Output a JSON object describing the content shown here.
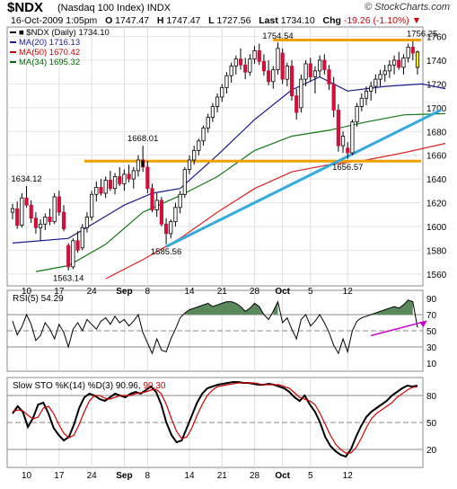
{
  "header": {
    "symbol": "$NDX",
    "index_name": "(Nasdaq 100 Index)",
    "exchange": "INDX",
    "brand": "© StockCharts.com",
    "date": "16-Oct-2009 1:05pm",
    "open_label": "O",
    "open": "1747.47",
    "high_label": "H",
    "high": "1747.47",
    "low_label": "L",
    "low": "1727.56",
    "last_label": "Last",
    "last": "1734.10",
    "chg_label": "Chg",
    "chg": "-19.26 (-1.10%)",
    "chg_arrow": "▼"
  },
  "legend": [
    {
      "label": "■ $NDX (Daily) 1734.10",
      "color": "#000000"
    },
    {
      "label": "MA(20) 1716.13",
      "color": "#1a1a8c"
    },
    {
      "label": "MA(50) 1670.42",
      "color": "#cc0000"
    },
    {
      "label": "MA(34) 1695.32",
      "color": "#006600"
    }
  ],
  "panels": {
    "rsi_label": "RSI(5) 54.29",
    "sto_label": "Slow STO %K(14) %D(3) 90.96,",
    "sto_d_value": "90.30"
  },
  "colors": {
    "up_candle": "#ffffff",
    "down_candle": "#d0103a",
    "black_candle": "#000000",
    "support_line": "#f0a000",
    "trend_line": "#33aadd",
    "arrow": "#cc00cc",
    "rsi_fill": "#5a8a5a"
  },
  "chart_data": [
    {
      "type": "candlestick",
      "title": "$NDX (Nasdaq 100 Index) Daily",
      "x_tick_labels": [
        "10",
        "17",
        "24",
        "Sep",
        "8",
        "14",
        "21",
        "28",
        "Oct",
        "5",
        "12"
      ],
      "y_tick_labels": [
        "1560",
        "1580",
        "1600",
        "1620",
        "1640",
        "1660",
        "1680",
        "1700",
        "1720",
        "1740",
        "1760"
      ],
      "ylim": [
        1550,
        1768
      ],
      "annotations": [
        {
          "text": "1634.12",
          "bar": 3,
          "value": 1634.12
        },
        {
          "text": "1563.14",
          "bar": 12,
          "value": 1563.14
        },
        {
          "text": "1668.01",
          "bar": 28,
          "value": 1668.01
        },
        {
          "text": "1585.56",
          "bar": 33,
          "value": 1585.56
        },
        {
          "text": "1754.54",
          "bar": 57,
          "value": 1754.54
        },
        {
          "text": "1656.57",
          "bar": 72,
          "value": 1656.57
        },
        {
          "text": "1756.25",
          "bar": 88,
          "value": 1756.25
        }
      ],
      "horizontal_lines": [
        1655,
        1757
      ],
      "trend_line": [
        [
          33,
          1583
        ],
        [
          92,
          1698
        ]
      ],
      "ohlc": [
        [
          1612,
          1619,
          1606,
          1615
        ],
        [
          1615,
          1621,
          1598,
          1601
        ],
        [
          1601,
          1628,
          1599,
          1624
        ],
        [
          1624,
          1634,
          1616,
          1618
        ],
        [
          1618,
          1622,
          1603,
          1607
        ],
        [
          1607,
          1612,
          1594,
          1599
        ],
        [
          1599,
          1606,
          1588,
          1602
        ],
        [
          1602,
          1611,
          1597,
          1608
        ],
        [
          1608,
          1615,
          1601,
          1604
        ],
        [
          1604,
          1628,
          1602,
          1625
        ],
        [
          1625,
          1630,
          1609,
          1612
        ],
        [
          1612,
          1618,
          1596,
          1598
        ],
        [
          1584,
          1586,
          1563,
          1566
        ],
        [
          1566,
          1590,
          1564,
          1588
        ],
        [
          1588,
          1596,
          1578,
          1580
        ],
        [
          1582,
          1602,
          1580,
          1599
        ],
        [
          1599,
          1612,
          1595,
          1608
        ],
        [
          1608,
          1630,
          1605,
          1627
        ],
        [
          1627,
          1638,
          1621,
          1633
        ],
        [
          1633,
          1640,
          1626,
          1628
        ],
        [
          1628,
          1642,
          1624,
          1639
        ],
        [
          1639,
          1647,
          1630,
          1632
        ],
        [
          1632,
          1645,
          1627,
          1642
        ],
        [
          1642,
          1650,
          1634,
          1636
        ],
        [
          1636,
          1648,
          1630,
          1644
        ],
        [
          1644,
          1652,
          1637,
          1640
        ],
        [
          1640,
          1650,
          1632,
          1647
        ],
        [
          1647,
          1660,
          1642,
          1656
        ],
        [
          1656,
          1668,
          1646,
          1650
        ],
        [
          1650,
          1655,
          1628,
          1632
        ],
        [
          1632,
          1636,
          1612,
          1614
        ],
        [
          1614,
          1628,
          1608,
          1622
        ],
        [
          1622,
          1625,
          1600,
          1602
        ],
        [
          1602,
          1607,
          1585,
          1594
        ],
        [
          1594,
          1606,
          1590,
          1604
        ],
        [
          1604,
          1620,
          1600,
          1616
        ],
        [
          1616,
          1630,
          1611,
          1627
        ],
        [
          1627,
          1650,
          1624,
          1648
        ],
        [
          1648,
          1660,
          1644,
          1656
        ],
        [
          1656,
          1668,
          1652,
          1664
        ],
        [
          1664,
          1674,
          1660,
          1672
        ],
        [
          1672,
          1685,
          1668,
          1683
        ],
        [
          1683,
          1695,
          1679,
          1692
        ],
        [
          1692,
          1704,
          1688,
          1701
        ],
        [
          1701,
          1712,
          1696,
          1709
        ],
        [
          1709,
          1720,
          1705,
          1717
        ],
        [
          1717,
          1730,
          1712,
          1727
        ],
        [
          1727,
          1738,
          1721,
          1735
        ],
        [
          1735,
          1744,
          1728,
          1741
        ],
        [
          1741,
          1750,
          1732,
          1736
        ],
        [
          1736,
          1742,
          1724,
          1730
        ],
        [
          1730,
          1745,
          1727,
          1741
        ],
        [
          1741,
          1752,
          1737,
          1748
        ],
        [
          1748,
          1754,
          1736,
          1739
        ],
        [
          1739,
          1745,
          1727,
          1731
        ],
        [
          1731,
          1740,
          1719,
          1722
        ],
        [
          1722,
          1735,
          1716,
          1732
        ],
        [
          1732,
          1755,
          1728,
          1750
        ],
        [
          1746,
          1750,
          1720,
          1724
        ],
        [
          1724,
          1738,
          1718,
          1735
        ],
        [
          1735,
          1740,
          1706,
          1710
        ],
        [
          1710,
          1716,
          1690,
          1696
        ],
        [
          1700,
          1728,
          1696,
          1724
        ],
        [
          1724,
          1740,
          1718,
          1737
        ],
        [
          1737,
          1742,
          1722,
          1726
        ],
        [
          1726,
          1735,
          1712,
          1731
        ],
        [
          1731,
          1744,
          1726,
          1740
        ],
        [
          1740,
          1745,
          1728,
          1732
        ],
        [
          1732,
          1736,
          1715,
          1720
        ],
        [
          1720,
          1726,
          1692,
          1698
        ],
        [
          1698,
          1703,
          1663,
          1668
        ],
        [
          1668,
          1680,
          1662,
          1676
        ],
        [
          1666,
          1671,
          1657,
          1662
        ],
        [
          1662,
          1690,
          1660,
          1688
        ],
        [
          1688,
          1704,
          1684,
          1701
        ],
        [
          1701,
          1712,
          1697,
          1708
        ],
        [
          1708,
          1718,
          1702,
          1714
        ],
        [
          1714,
          1722,
          1706,
          1718
        ],
        [
          1718,
          1728,
          1712,
          1724
        ],
        [
          1724,
          1732,
          1718,
          1728
        ],
        [
          1728,
          1736,
          1722,
          1731
        ],
        [
          1731,
          1740,
          1725,
          1736
        ],
        [
          1736,
          1744,
          1728,
          1740
        ],
        [
          1740,
          1747,
          1732,
          1734
        ],
        [
          1734,
          1745,
          1728,
          1742
        ],
        [
          1742,
          1754,
          1738,
          1751
        ],
        [
          1751,
          1756,
          1740,
          1746
        ],
        [
          1747,
          1748,
          1728,
          1734
        ]
      ],
      "ma20": [
        [
          0,
          1586
        ],
        [
          12,
          1590
        ],
        [
          24,
          1618
        ],
        [
          30,
          1628
        ],
        [
          36,
          1632
        ],
        [
          44,
          1660
        ],
        [
          52,
          1690
        ],
        [
          60,
          1715
        ],
        [
          66,
          1726
        ],
        [
          72,
          1714
        ],
        [
          80,
          1718
        ],
        [
          88,
          1720
        ],
        [
          93,
          1716
        ]
      ],
      "ma34": [
        [
          5,
          1562
        ],
        [
          12,
          1567
        ],
        [
          20,
          1585
        ],
        [
          28,
          1612
        ],
        [
          36,
          1626
        ],
        [
          44,
          1642
        ],
        [
          52,
          1664
        ],
        [
          60,
          1676
        ],
        [
          68,
          1681
        ],
        [
          76,
          1688
        ],
        [
          84,
          1694
        ],
        [
          93,
          1695
        ]
      ],
      "ma50": [
        [
          20,
          1556
        ],
        [
          28,
          1572
        ],
        [
          36,
          1590
        ],
        [
          44,
          1612
        ],
        [
          52,
          1632
        ],
        [
          60,
          1646
        ],
        [
          68,
          1652
        ],
        [
          76,
          1656
        ],
        [
          84,
          1662
        ],
        [
          93,
          1670
        ]
      ]
    },
    {
      "type": "line",
      "title": "RSI(5) 54.29",
      "y_tick_labels": [
        "10",
        "30",
        "50",
        "70",
        "90"
      ],
      "ylim": [
        0,
        100
      ],
      "reference_lines": [
        30,
        50,
        70
      ],
      "values": [
        62,
        45,
        55,
        70,
        58,
        38,
        44,
        60,
        52,
        40,
        58,
        48,
        30,
        52,
        60,
        50,
        64,
        58,
        52,
        62,
        66,
        58,
        68,
        60,
        64,
        56,
        62,
        70,
        48,
        35,
        22,
        40,
        26,
        24,
        40,
        52,
        66,
        72,
        76,
        78,
        80,
        82,
        84,
        80,
        82,
        84,
        86,
        86,
        84,
        80,
        74,
        78,
        84,
        80,
        70,
        64,
        74,
        86,
        60,
        66,
        52,
        40,
        64,
        70,
        56,
        62,
        70,
        60,
        48,
        32,
        22,
        40,
        24,
        50,
        62,
        66,
        68,
        70,
        72,
        74,
        76,
        78,
        80,
        78,
        82,
        88,
        86,
        54
      ],
      "trend_arrow": [
        [
          77,
          44
        ],
        [
          89,
          62
        ]
      ]
    },
    {
      "type": "line",
      "title": "Slow STO %K(14) %D(3)",
      "y_tick_labels": [
        "20",
        "50",
        "80"
      ],
      "ylim": [
        0,
        100
      ],
      "reference_lines": [
        20,
        50,
        80
      ],
      "series": [
        {
          "name": "%K(14)",
          "color": "#000000",
          "values": [
            60,
            68,
            62,
            45,
            55,
            70,
            72,
            60,
            44,
            36,
            30,
            34,
            48,
            66,
            78,
            82,
            80,
            76,
            74,
            78,
            82,
            80,
            78,
            82,
            84,
            82,
            86,
            90,
            84,
            70,
            50,
            36,
            28,
            30,
            44,
            58,
            72,
            82,
            88,
            90,
            92,
            93,
            94,
            95,
            95,
            94,
            94,
            93,
            92,
            92,
            93,
            92,
            90,
            88,
            84,
            78,
            74,
            80,
            70,
            62,
            50,
            34,
            24,
            18,
            14,
            12,
            20,
            34,
            46,
            56,
            62,
            66,
            70,
            74,
            80,
            84,
            88,
            91,
            90,
            91
          ]
        },
        {
          "name": "%D(3)",
          "color": "#cc0000",
          "values": [
            62,
            64,
            63,
            58,
            54,
            56,
            66,
            68,
            60,
            48,
            38,
            33,
            36,
            48,
            62,
            74,
            80,
            80,
            77,
            76,
            78,
            80,
            80,
            80,
            82,
            83,
            84,
            86,
            87,
            82,
            70,
            54,
            40,
            32,
            34,
            44,
            58,
            70,
            80,
            86,
            90,
            91,
            92,
            93,
            94,
            94,
            94,
            94,
            93,
            92,
            92,
            92,
            92,
            90,
            88,
            83,
            78,
            76,
            74,
            70,
            60,
            48,
            36,
            26,
            20,
            16,
            16,
            22,
            32,
            44,
            54,
            60,
            64,
            68,
            72,
            78,
            82,
            86,
            89,
            90
          ]
        }
      ],
      "trend_arrow": [
        [
          88,
          96
        ],
        [
          88,
          84
        ]
      ]
    }
  ]
}
